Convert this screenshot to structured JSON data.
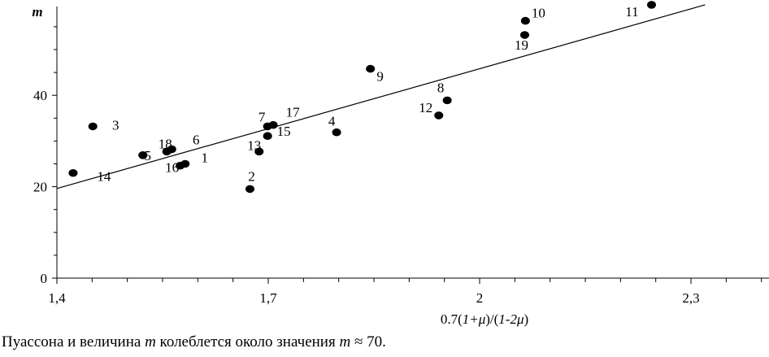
{
  "chart_data": {
    "type": "scatter",
    "ylabel": "m",
    "xlabel_parts": [
      "0.7(",
      "1+μ",
      ")/(",
      "1-2μ",
      ")"
    ],
    "xlim": [
      1.4,
      2.4
    ],
    "ylim": [
      0,
      60
    ],
    "x_ticks": [
      1.4,
      1.7,
      2.0,
      2.3
    ],
    "x_tick_labels": [
      "1,4",
      "1,7",
      "2",
      "2,3"
    ],
    "y_ticks": [
      0,
      20,
      40
    ],
    "y_tick_labels": [
      "0",
      "20",
      "40"
    ],
    "grid": false,
    "points": [
      {
        "label": "1",
        "x": 1.582,
        "y": 25.0
      },
      {
        "label": "2",
        "x": 1.674,
        "y": 19.5
      },
      {
        "label": "3",
        "x": 1.451,
        "y": 33.2
      },
      {
        "label": "4",
        "x": 1.797,
        "y": 31.9
      },
      {
        "label": "5",
        "x": 1.522,
        "y": 26.9
      },
      {
        "label": "6",
        "x": 1.563,
        "y": 28.2
      },
      {
        "label": "7",
        "x": 1.699,
        "y": 33.2
      },
      {
        "label": "8",
        "x": 1.954,
        "y": 38.9
      },
      {
        "label": "9",
        "x": 1.845,
        "y": 45.8
      },
      {
        "label": "10",
        "x": 2.065,
        "y": 56.3
      },
      {
        "label": "11",
        "x": 2.244,
        "y": 59.8
      },
      {
        "label": "12",
        "x": 1.942,
        "y": 35.6
      },
      {
        "label": "13",
        "x": 1.687,
        "y": 27.7
      },
      {
        "label": "15",
        "x": 1.699,
        "y": 31.1
      },
      {
        "label": "16",
        "x": 1.575,
        "y": 24.6
      },
      {
        "label": "17",
        "x": 1.707,
        "y": 33.5
      },
      {
        "label": "18",
        "x": 1.556,
        "y": 27.7
      },
      {
        "label": "14",
        "x": 1.423,
        "y": 23.0
      },
      {
        "label": "19",
        "x": 2.064,
        "y": 53.2
      }
    ],
    "trend_line": {
      "x": [
        1.4,
        2.32
      ],
      "y": [
        19.6,
        59.8
      ]
    }
  },
  "caption": {
    "t1": "Пуассона и величина ",
    "t2": "m",
    "t3": " колеблется около значения ",
    "t4": "m",
    "t5": " ≈ 70."
  }
}
